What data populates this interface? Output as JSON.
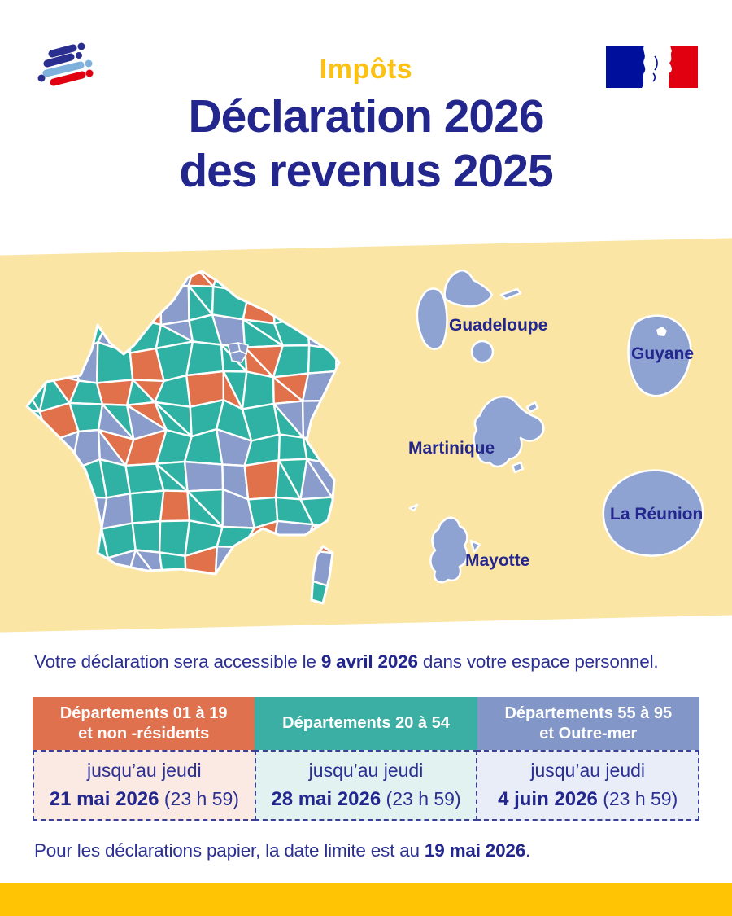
{
  "poster": {
    "kicker": "Impôts",
    "title_line1": "Déclaration 2026",
    "title_line2": "des revenus 2025"
  },
  "colors": {
    "navy": "#23278D",
    "text_navy": "#2B3092",
    "kicker_yellow": "#FCC211",
    "band_yellow": "#FBE5A4",
    "footer_yellow": "#FFC403",
    "map_teal": "#2FB2A3",
    "map_blue": "#8A9CCB",
    "map_orange": "#E0714B",
    "island_blue": "#8FA3D2",
    "header_orange": "#E0714E",
    "header_teal": "#3BAFA3",
    "header_blue": "#8396C8",
    "cell_pink": "#FBEAE4",
    "cell_teal": "#E2F2F0",
    "cell_blue": "#E9EDF7",
    "dash_navy": "#3B4094"
  },
  "map": {
    "island_labels": [
      "Guadeloupe",
      "Guyane",
      "Martinique",
      "La Réunion",
      "Mayotte"
    ]
  },
  "access_line": {
    "prefix": "Votre déclaration sera accessible le ",
    "bold": "9 avril 2026",
    "suffix": " dans votre espace personnel."
  },
  "deadline_table": {
    "columns": [
      {
        "header_line1": "Départements 01 à 19",
        "header_line2": "et non -résidents",
        "body_line1": "jusqu’au jeudi",
        "date": "21 mai 2026",
        "time": " (23 h 59)"
      },
      {
        "header_line1": "Départements 20 à 54",
        "header_line2": "",
        "body_line1": "jusqu’au jeudi",
        "date": "28 mai 2026",
        "time": " (23 h 59)"
      },
      {
        "header_line1": "Départements 55 à 95",
        "header_line2": "et Outre-mer",
        "body_line1": "jusqu’au jeudi",
        "date": "4 juin 2026",
        "time": " (23 h 59)"
      }
    ]
  },
  "paper_line": {
    "prefix": "Pour les déclarations papier, la date limite est au ",
    "bold": "19 mai 2026",
    "suffix": "."
  }
}
